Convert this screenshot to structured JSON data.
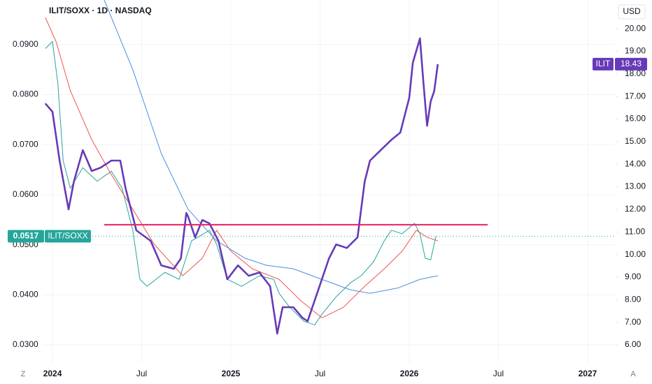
{
  "chart_data": {
    "type": "line",
    "title": "ILIT/SOXX · 1D · NASDAQ",
    "currency": "USD",
    "scale_buttons": [
      "Z",
      "A"
    ],
    "xlim": [
      2023.941,
      2027.157
    ],
    "xticks": [
      2024,
      {
        "value": 2024.5,
        "label": "Jul"
      },
      2025,
      {
        "value": 2025.5,
        "label": "Jul"
      },
      2026,
      {
        "value": 2026.5,
        "label": "Jul"
      },
      2027
    ],
    "ylim": [
      0.02637,
      0.0989
    ],
    "yticks": [
      {
        "value": 0.03,
        "label": "0.0300"
      },
      {
        "value": 0.04,
        "label": "0.0400"
      },
      {
        "value": 0.05,
        "label": "0.0500"
      },
      {
        "value": 0.06,
        "label": "0.0600"
      },
      {
        "value": 0.07,
        "label": "0.0700"
      },
      {
        "value": 0.08,
        "label": "0.0800"
      },
      {
        "value": 0.09,
        "label": "0.0900"
      }
    ],
    "y2lim": [
      5.197,
      21.27
    ],
    "y2ticks": [
      {
        "value": 6,
        "label": "6.00"
      },
      {
        "value": 7,
        "label": "7.00"
      },
      {
        "value": 8,
        "label": "8.00"
      },
      {
        "value": 9,
        "label": "9.00"
      },
      {
        "value": 10,
        "label": "10.00"
      },
      {
        "value": 11,
        "label": "11.00"
      },
      {
        "value": 12,
        "label": "12.00"
      },
      {
        "value": 13,
        "label": "13.00"
      },
      {
        "value": 14,
        "label": "14.00"
      },
      {
        "value": 15,
        "label": "15.00"
      },
      {
        "value": 16,
        "label": "16.00"
      },
      {
        "value": 17,
        "label": "17.00"
      },
      {
        "value": 18,
        "label": "18.00"
      },
      {
        "value": 19,
        "label": "19.00"
      },
      {
        "value": 20,
        "label": "20.00"
      }
    ],
    "grid": true,
    "series": [
      {
        "name": "ILIT/SOXX",
        "color": "#26a69a",
        "width": 1,
        "last": 0.0517,
        "x": [
          2023.96,
          2024.0,
          2024.03,
          2024.06,
          2024.1,
          2024.17,
          2024.25,
          2024.33,
          2024.39,
          2024.45,
          2024.49,
          2024.53,
          2024.63,
          2024.71,
          2024.78,
          2024.88,
          2024.92,
          2024.98,
          2025.06,
          2025.16,
          2025.24,
          2025.27,
          2025.33,
          2025.41,
          2025.47,
          2025.51,
          2025.59,
          2025.67,
          2025.73,
          2025.8,
          2025.86,
          2025.9,
          2025.96,
          2026.03,
          2026.06,
          2026.09,
          2026.12,
          2026.15
        ],
        "values": [
          0.0892,
          0.0906,
          0.0822,
          0.0668,
          0.0613,
          0.0654,
          0.0627,
          0.0647,
          0.0613,
          0.0529,
          0.0431,
          0.0417,
          0.0445,
          0.0431,
          0.0508,
          0.0529,
          0.0501,
          0.0431,
          0.0417,
          0.0438,
          0.0431,
          0.0403,
          0.0375,
          0.0347,
          0.034,
          0.0361,
          0.0396,
          0.0424,
          0.0438,
          0.0466,
          0.0508,
          0.0529,
          0.0522,
          0.0543,
          0.0522,
          0.0473,
          0.047,
          0.0517
        ]
      },
      {
        "color": "#ef5350",
        "width": 1,
        "x": [
          2023.96,
          2024.02,
          2024.1,
          2024.22,
          2024.33,
          2024.45,
          2024.57,
          2024.73,
          2024.84,
          2024.92,
          2025.0,
          2025.12,
          2025.27,
          2025.39,
          2025.51,
          2025.63,
          2025.75,
          2025.86,
          2025.96,
          2026.04,
          2026.1,
          2026.16
        ],
        "values": [
          0.0954,
          0.0906,
          0.0808,
          0.071,
          0.064,
          0.0571,
          0.0501,
          0.0438,
          0.0473,
          0.0529,
          0.0487,
          0.0452,
          0.0431,
          0.0389,
          0.0354,
          0.0375,
          0.0417,
          0.0452,
          0.0487,
          0.0529,
          0.0515,
          0.0508
        ]
      },
      {
        "color": "#4a90d9",
        "width": 1,
        "x": [
          2024.29,
          2024.45,
          2024.61,
          2024.76,
          2024.92,
          2025.08,
          2025.2,
          2025.35,
          2025.51,
          2025.67,
          2025.78,
          2025.94,
          2026.06,
          2026.16
        ],
        "values": [
          0.0989,
          0.085,
          0.0682,
          0.0571,
          0.0508,
          0.0473,
          0.0459,
          0.0452,
          0.0431,
          0.041,
          0.0403,
          0.0414,
          0.0431,
          0.0438
        ]
      },
      {
        "name": "ILIT",
        "color": "#673ab7",
        "width": 2.6,
        "axis": "y2",
        "last": 18.43,
        "x": [
          2023.96,
          2024.0,
          2024.04,
          2024.09,
          2024.12,
          2024.17,
          2024.22,
          2024.27,
          2024.33,
          2024.38,
          2024.41,
          2024.47,
          2024.55,
          2024.61,
          2024.68,
          2024.72,
          2024.75,
          2024.76,
          2024.8,
          2024.84,
          2024.88,
          2024.93,
          2024.98,
          2025.04,
          2025.1,
          2025.16,
          2025.22,
          2025.26,
          2025.29,
          2025.35,
          2025.4,
          2025.43,
          2025.49,
          2025.55,
          2025.59,
          2025.65,
          2025.71,
          2025.73,
          2025.75,
          2025.78,
          2025.84,
          2025.9,
          2025.95,
          2026.0,
          2026.02,
          2026.06,
          2026.08,
          2026.1,
          2026.12,
          2026.14,
          2026.16
        ],
        "values": [
          16.69,
          16.32,
          14.16,
          12.0,
          13.23,
          14.62,
          13.7,
          13.85,
          14.16,
          14.16,
          12.92,
          11.07,
          10.61,
          9.52,
          9.37,
          9.83,
          11.84,
          11.69,
          10.76,
          11.53,
          11.38,
          10.61,
          8.91,
          9.52,
          9.06,
          9.21,
          8.6,
          6.5,
          7.67,
          7.67,
          7.21,
          7.05,
          8.44,
          9.83,
          10.45,
          10.29,
          10.76,
          12.0,
          13.23,
          14.16,
          14.62,
          15.08,
          15.4,
          16.94,
          18.49,
          19.57,
          17.56,
          15.7,
          16.78,
          17.24,
          18.43
        ]
      }
    ],
    "hline": {
      "value": 0.054,
      "x": [
        2024.29,
        2026.44
      ],
      "color": "#e91e63"
    }
  }
}
